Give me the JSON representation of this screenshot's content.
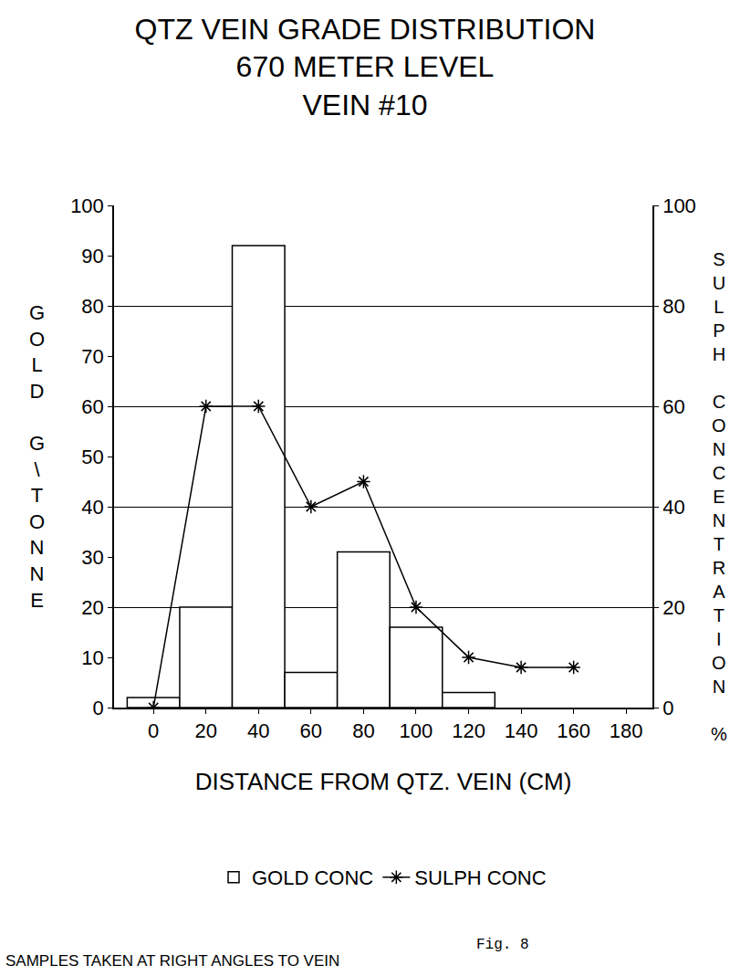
{
  "chart_data": {
    "type": "bar",
    "title": [
      "QTZ VEIN GRADE DISTRIBUTION",
      "670 METER LEVEL",
      "VEIN #10"
    ],
    "xlabel": "DISTANCE FROM QTZ. VEIN (CM)",
    "ylabel": "GOLD G\\TONNE",
    "y2label": "SULPH CONCENTRATION %",
    "annotations": [
      "SAMPLES TAKEN AT RIGHT ANGLES TO VEIN",
      "Fig. 8"
    ],
    "xlim": [
      -15,
      190
    ],
    "xticks": [
      0,
      20,
      40,
      60,
      80,
      100,
      120,
      140,
      160,
      180
    ],
    "ylim": [
      0,
      100
    ],
    "yticks": [
      0,
      10,
      20,
      30,
      40,
      50,
      60,
      70,
      80,
      90,
      100
    ],
    "y2lim": [
      0,
      100
    ],
    "y2ticks": [
      0,
      20,
      40,
      60,
      80,
      100
    ],
    "grid": true,
    "legend": "bottom",
    "series": [
      {
        "name": "GOLD CONC",
        "type": "bar",
        "color": "#ffffff",
        "bins": [
          -10,
          10,
          30,
          50,
          70,
          90,
          110,
          130
        ],
        "values": [
          2,
          20,
          92,
          7,
          31,
          16,
          3
        ]
      },
      {
        "name": "SULPH CONC",
        "type": "line",
        "axis": "y2",
        "color": "#000000",
        "marker": "asterisk",
        "x": [
          0,
          20,
          40,
          60,
          80,
          100,
          120,
          140,
          160
        ],
        "values": [
          0,
          60,
          60,
          40,
          45,
          20,
          10,
          8,
          8
        ]
      }
    ]
  }
}
